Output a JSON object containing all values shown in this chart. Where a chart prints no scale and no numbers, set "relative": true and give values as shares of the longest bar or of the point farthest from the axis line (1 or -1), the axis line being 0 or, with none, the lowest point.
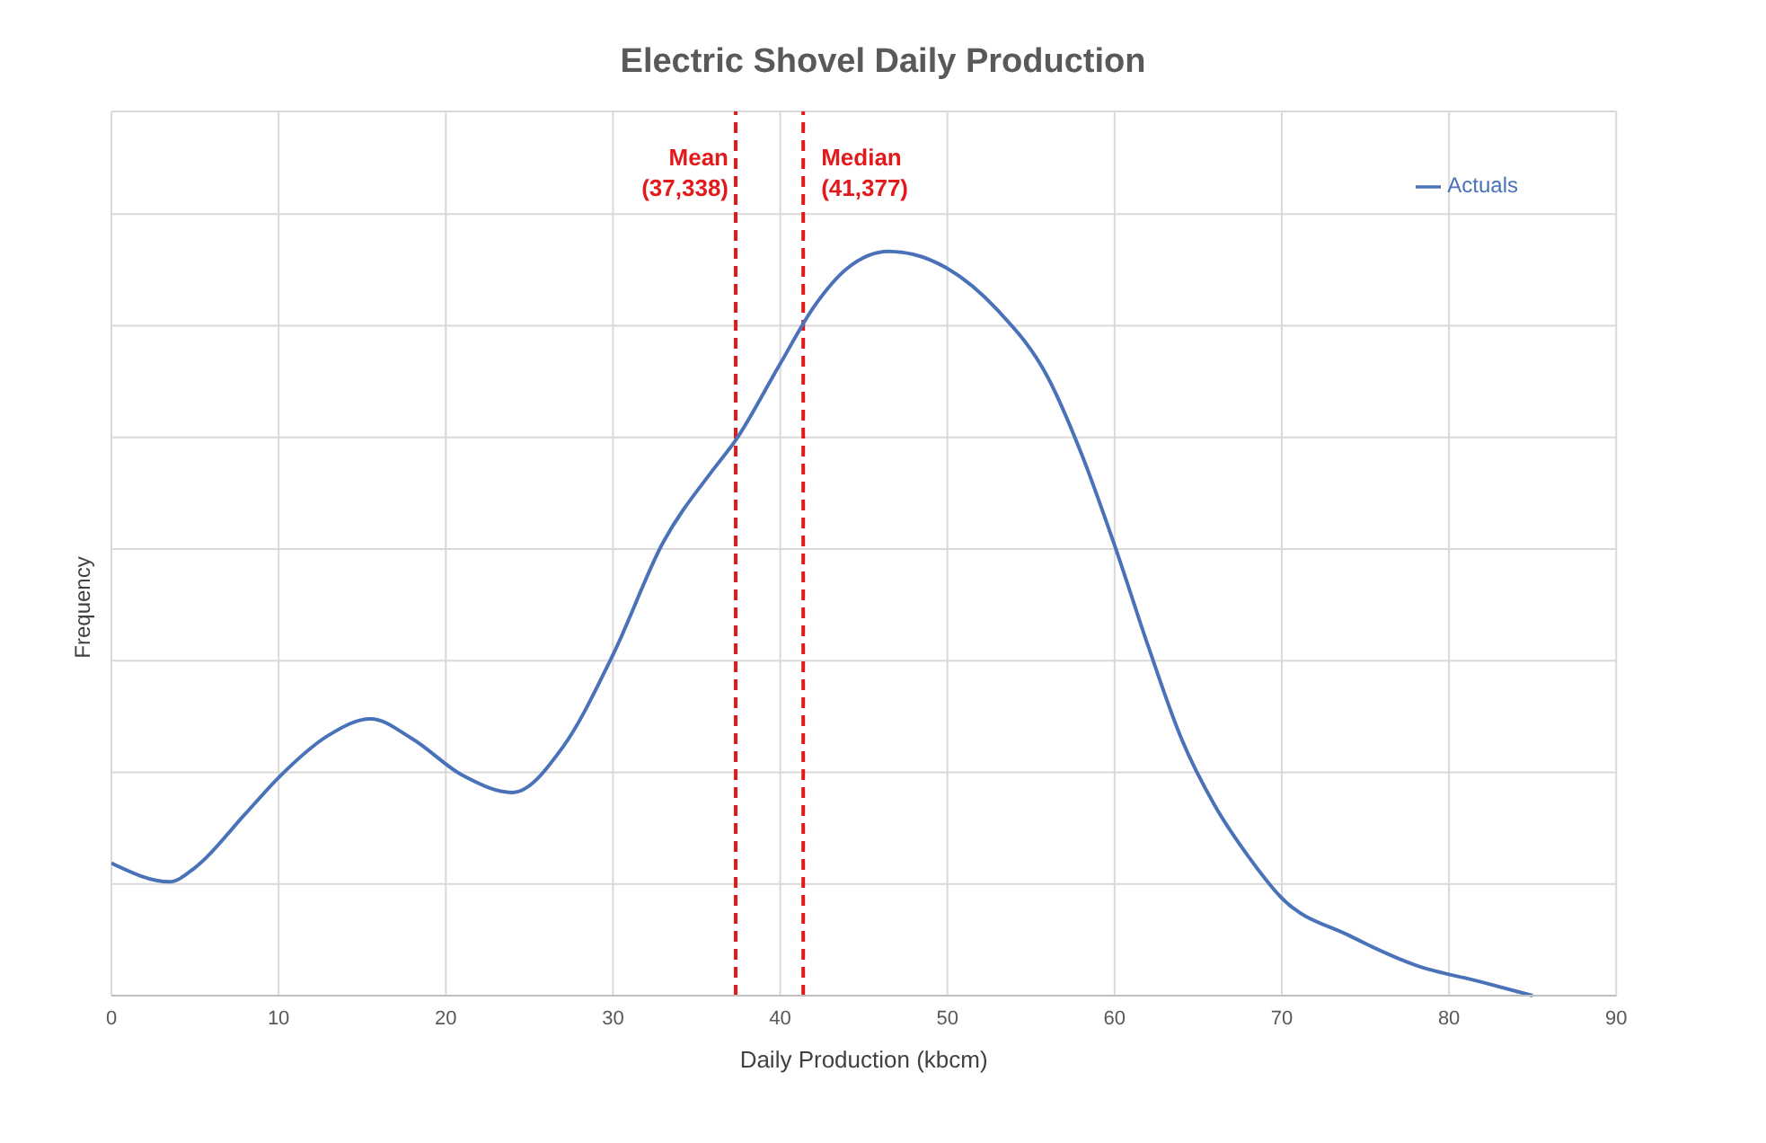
{
  "chart_data": {
    "type": "line",
    "title": "Electric Shovel Daily Production",
    "xlabel": "Daily Production (kbcm)",
    "ylabel": "Frequency",
    "relative": true,
    "xlim": [
      0,
      90
    ],
    "xticks": [
      0,
      10,
      20,
      30,
      40,
      50,
      60,
      70,
      80,
      90
    ],
    "grid": true,
    "legend": "top right",
    "marker": "none",
    "line_style": "solid",
    "x": [
      0,
      3.5,
      5,
      8,
      10,
      13,
      15.5,
      18,
      21,
      24,
      27,
      30,
      33,
      36,
      37.3,
      40,
      42,
      44,
      46.5,
      50,
      53,
      56,
      58,
      60,
      62,
      64,
      66,
      68,
      70,
      74,
      78,
      82,
      85
    ],
    "series": [
      {
        "name": "Actuals",
        "color": "#4a72b8",
        "values": [
          0.178,
          0.153,
          0.172,
          0.244,
          0.293,
          0.35,
          0.372,
          0.345,
          0.296,
          0.273,
          0.334,
          0.458,
          0.609,
          0.707,
          0.745,
          0.849,
          0.925,
          0.977,
          1,
          0.977,
          0.921,
          0.831,
          0.729,
          0.605,
          0.47,
          0.345,
          0.255,
          0.187,
          0.131,
          0.081,
          0.041,
          0.018,
          0
        ]
      }
    ],
    "ref_lines": [
      {
        "axis": "x",
        "value": 37.338,
        "label": "Mean\n(37,338)",
        "color": "#e31a1c",
        "line_style": "dashed"
      },
      {
        "axis": "x",
        "value": 41.377,
        "label": "Median\n(41,377)",
        "color": "#e31a1c",
        "line_style": "dashed"
      }
    ]
  }
}
